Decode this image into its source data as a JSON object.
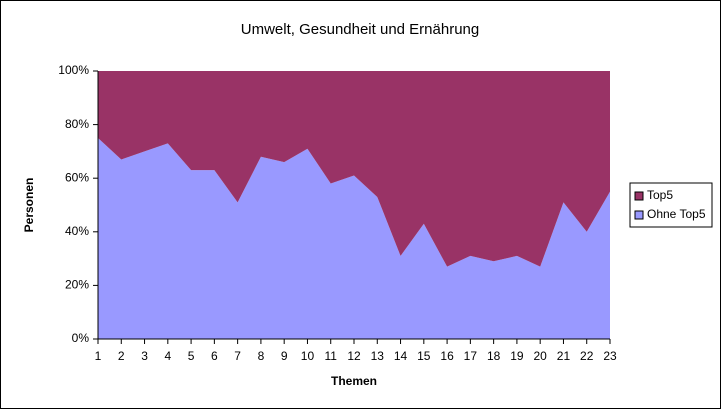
{
  "chart_data": {
    "type": "stacked-area",
    "title": "Umwelt, Gesundheit und Ernährung",
    "x_label": "Themen",
    "y_label": "Personen",
    "x": [
      1,
      2,
      3,
      4,
      5,
      6,
      7,
      8,
      9,
      10,
      11,
      12,
      13,
      14,
      15,
      16,
      17,
      18,
      19,
      20,
      21,
      22,
      23
    ],
    "xlim": [
      1,
      23
    ],
    "series": [
      {
        "name": "Ohne Top5",
        "color": "#9999ff",
        "values": [
          75,
          67,
          70,
          73,
          63,
          63,
          51,
          68,
          66,
          71,
          58,
          61,
          53,
          31,
          43,
          27,
          31,
          29,
          31,
          27,
          51,
          40,
          55
        ]
      },
      {
        "name": "Top5",
        "color": "#993366",
        "values": [
          25,
          33,
          30,
          27,
          37,
          37,
          49,
          32,
          34,
          29,
          42,
          39,
          47,
          69,
          57,
          73,
          69,
          71,
          69,
          73,
          49,
          60,
          45
        ]
      }
    ],
    "ylim": [
      0,
      100
    ],
    "yticks": [
      {
        "value": 0,
        "label": "0%"
      },
      {
        "value": 20,
        "label": "20%"
      },
      {
        "value": 40,
        "label": "40%"
      },
      {
        "value": 60,
        "label": "60%"
      },
      {
        "value": 80,
        "label": "80%"
      },
      {
        "value": 100,
        "label": "100%"
      }
    ],
    "legend": "right"
  }
}
